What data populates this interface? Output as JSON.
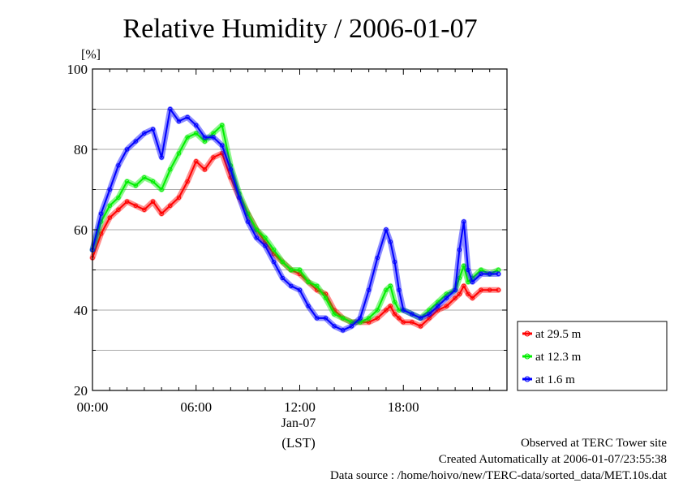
{
  "chart_data": {
    "type": "line",
    "title": "Relative Humidity / 2006-01-07",
    "ylabel": "[%]",
    "xlabel": "(LST)",
    "date_label": "Jan-07",
    "xlim": [
      0,
      24
    ],
    "ylim": [
      20,
      100
    ],
    "x_ticks": [
      0,
      6,
      12,
      18
    ],
    "x_tick_labels": [
      "00:00",
      "06:00",
      "12:00",
      "18:00"
    ],
    "y_ticks": [
      20,
      40,
      60,
      80,
      100
    ],
    "y_tick_labels": [
      "20",
      "40",
      "60",
      "80",
      "100"
    ],
    "grid": true,
    "legend_position": "bottom-right",
    "x": [
      0,
      0.5,
      1,
      1.5,
      2,
      2.5,
      3,
      3.5,
      4,
      4.5,
      5,
      5.5,
      6,
      6.5,
      7,
      7.5,
      8,
      8.5,
      9,
      9.5,
      10,
      10.5,
      11,
      11.5,
      12,
      12.5,
      13,
      13.5,
      14,
      14.5,
      15,
      15.5,
      16,
      16.5,
      17,
      17.25,
      17.5,
      17.75,
      18,
      18.5,
      19,
      19.5,
      20,
      20.5,
      21,
      21.25,
      21.5,
      21.75,
      22,
      22.5,
      23,
      23.5
    ],
    "series": [
      {
        "name": "at 29.5 m",
        "color": "#ff0000",
        "values": [
          53,
          59,
          63,
          65,
          67,
          66,
          65,
          67,
          64,
          66,
          68,
          72,
          77,
          75,
          78,
          79,
          73,
          68,
          64,
          60,
          57,
          54,
          52,
          50,
          49,
          47,
          45,
          44,
          40,
          38,
          37,
          37,
          37,
          38,
          40,
          41,
          39,
          38,
          37,
          37,
          36,
          38,
          40,
          41,
          43,
          44,
          46,
          44,
          43,
          45,
          45,
          45
        ]
      },
      {
        "name": "at 12.3 m",
        "color": "#00ee00",
        "values": [
          55,
          62,
          66,
          68,
          72,
          71,
          73,
          72,
          70,
          75,
          79,
          83,
          84,
          82,
          84,
          86,
          76,
          69,
          64,
          60,
          58,
          55,
          52,
          50,
          50,
          47,
          46,
          43,
          39,
          38,
          37,
          37,
          38,
          40,
          45,
          46,
          42,
          40,
          40,
          39,
          38,
          40,
          42,
          44,
          45,
          48,
          51,
          47,
          48,
          50,
          49,
          50
        ]
      },
      {
        "name": "at 1.6 m",
        "color": "#0000ff",
        "values": [
          55,
          64,
          70,
          76,
          80,
          82,
          84,
          85,
          78,
          90,
          87,
          88,
          86,
          83,
          83,
          81,
          75,
          68,
          62,
          58,
          56,
          52,
          48,
          46,
          45,
          41,
          38,
          38,
          36,
          35,
          36,
          38,
          45,
          53,
          60,
          57,
          52,
          45,
          40,
          39,
          38,
          39,
          41,
          43,
          45,
          55,
          62,
          50,
          47,
          49,
          49,
          49
        ]
      }
    ]
  },
  "footer": {
    "line1": "Observed at TERC Tower site",
    "line2": "Created Automatically at 2006-01-07/23:55:38",
    "line3": "Data source : /home/hoivo/new/TERC-data/sorted_data/MET.10s.dat"
  }
}
